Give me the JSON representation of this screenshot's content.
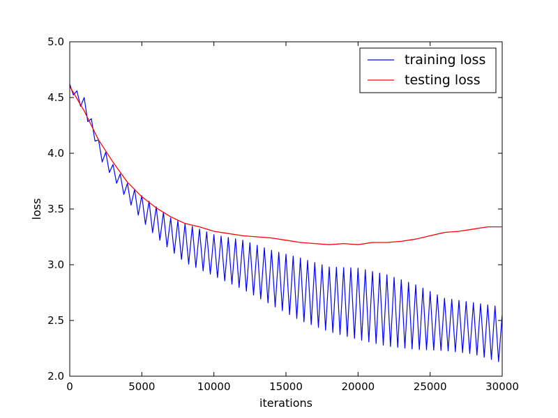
{
  "chart_data": {
    "type": "line",
    "xlabel": "iterations",
    "ylabel": "loss",
    "xlim": [
      0,
      30000
    ],
    "ylim": [
      2.0,
      5.0
    ],
    "x_ticks": [
      0,
      5000,
      10000,
      15000,
      20000,
      25000,
      30000
    ],
    "y_ticks": [
      2.0,
      2.5,
      3.0,
      3.5,
      4.0,
      4.5,
      5.0
    ],
    "x_tick_labels": [
      "0",
      "5000",
      "10000",
      "15000",
      "20000",
      "25000",
      "30000"
    ],
    "y_tick_labels": [
      "2.0",
      "2.5",
      "3.0",
      "3.5",
      "4.0",
      "4.5",
      "5.0"
    ],
    "grid": false,
    "legend_position": "top-right",
    "series": [
      {
        "name": "training loss",
        "color": "#0000ff",
        "cycle_period": 500,
        "upper_envelope": [
          [
            0,
            4.62
          ],
          [
            1000,
            4.5
          ],
          [
            2000,
            4.12
          ],
          [
            3000,
            3.9
          ],
          [
            4000,
            3.73
          ],
          [
            5000,
            3.62
          ],
          [
            6000,
            3.52
          ],
          [
            7000,
            3.42
          ],
          [
            8000,
            3.37
          ],
          [
            10000,
            3.27
          ],
          [
            12000,
            3.22
          ],
          [
            14000,
            3.13
          ],
          [
            16000,
            3.06
          ],
          [
            18000,
            2.98
          ],
          [
            20000,
            2.97
          ],
          [
            22000,
            2.91
          ],
          [
            24000,
            2.82
          ],
          [
            26000,
            2.7
          ],
          [
            28000,
            2.66
          ],
          [
            30000,
            2.62
          ]
        ],
        "lower_envelope": [
          [
            0,
            4.55
          ],
          [
            1000,
            4.3
          ],
          [
            2000,
            3.97
          ],
          [
            3000,
            3.78
          ],
          [
            4000,
            3.58
          ],
          [
            5000,
            3.4
          ],
          [
            6000,
            3.25
          ],
          [
            7000,
            3.13
          ],
          [
            8000,
            3.02
          ],
          [
            10000,
            2.9
          ],
          [
            12000,
            2.78
          ],
          [
            14000,
            2.64
          ],
          [
            16000,
            2.5
          ],
          [
            18000,
            2.4
          ],
          [
            20000,
            2.33
          ],
          [
            22000,
            2.27
          ],
          [
            24000,
            2.24
          ],
          [
            26000,
            2.23
          ],
          [
            28000,
            2.2
          ],
          [
            30000,
            2.12
          ]
        ],
        "last_point": [
          30000,
          2.55
        ]
      },
      {
        "name": "testing loss",
        "color": "#ff0000",
        "x": [
          0,
          1000,
          2000,
          3000,
          4000,
          5000,
          6000,
          7000,
          8000,
          9000,
          10000,
          11000,
          12000,
          13000,
          14000,
          15000,
          16000,
          17000,
          18000,
          19000,
          20000,
          21000,
          22000,
          23000,
          24000,
          25000,
          26000,
          27000,
          28000,
          29000,
          30000
        ],
        "y": [
          4.6,
          4.38,
          4.12,
          3.92,
          3.74,
          3.61,
          3.51,
          3.43,
          3.37,
          3.34,
          3.3,
          3.28,
          3.26,
          3.25,
          3.24,
          3.22,
          3.2,
          3.19,
          3.18,
          3.19,
          3.18,
          3.2,
          3.2,
          3.21,
          3.23,
          3.26,
          3.29,
          3.3,
          3.32,
          3.34,
          3.34
        ]
      }
    ]
  }
}
